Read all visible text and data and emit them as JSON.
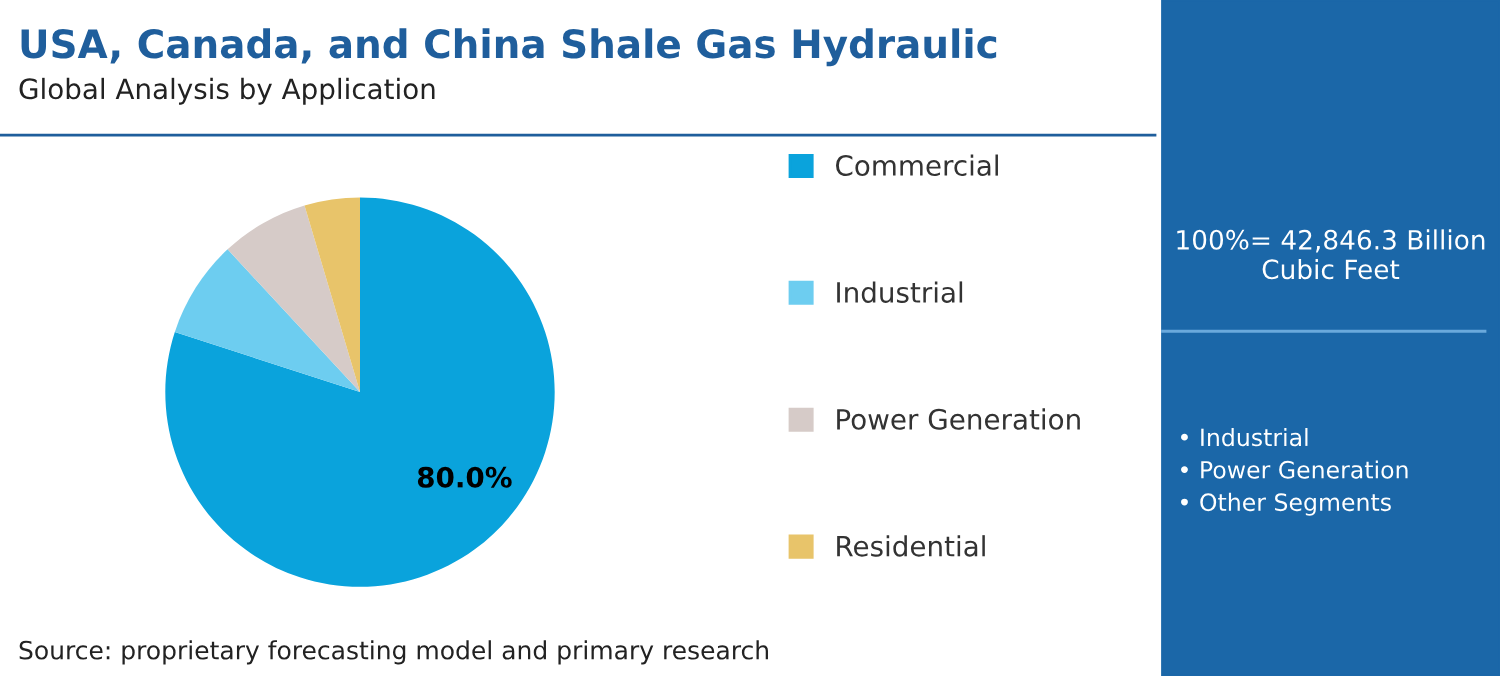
{
  "chart_data": {
    "type": "pie",
    "title": "USA, Canada, and China Shale Gas Hydraulic",
    "subtitle": "Global Analysis by Application",
    "categories": [
      "Commercial",
      "Industrial",
      "Power Generation",
      "Residential"
    ],
    "values": [
      80.0,
      8.1,
      7.3,
      4.6
    ],
    "colors": [
      "#0aa3dc",
      "#6dcdf0",
      "#d6cbc8",
      "#e8c46a"
    ],
    "value_labels": [
      "80.0%",
      null,
      null,
      null
    ],
    "legend": "right",
    "annotations": [
      "Source: proprietary forecasting model and primary research",
      "100%= 42,846.3 Billion Cubic Feet",
      "• Industrial",
      "• Power Generation",
      "• Other Segments"
    ]
  }
}
